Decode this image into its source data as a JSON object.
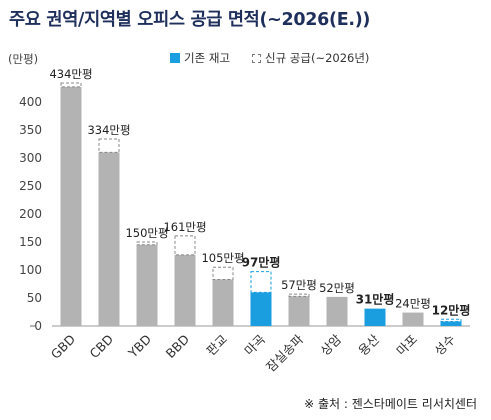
{
  "title": "주요 권역/지역별 오피스 공급 면적(~2026(E.))",
  "source": "※ 출처 : 젠스타메이트 리서치센터",
  "chart_data": {
    "type": "bar",
    "stacked": true,
    "unit_label": "(만평)",
    "yticks": [
      0,
      50,
      100,
      150,
      200,
      250,
      300,
      350,
      400
    ],
    "ylim": [
      0,
      450
    ],
    "categories": [
      "GBD",
      "CBD",
      "YBD",
      "BBD",
      "판교",
      "마곡",
      "잠실송파",
      "상암",
      "용산",
      "마포",
      "성수"
    ],
    "series": [
      {
        "name": "기존 재고",
        "values": [
          427,
          310,
          145,
          127,
          83,
          60,
          53,
          52,
          31,
          24,
          8
        ]
      },
      {
        "name": "신규 공급(~2026년)",
        "values": [
          7,
          24,
          5,
          34,
          22,
          37,
          4,
          0,
          0,
          0,
          4
        ]
      }
    ],
    "total_labels": [
      "434만평",
      "334만평",
      "150만평",
      "161만평",
      "105만평",
      "97만평",
      "57만평",
      "52만평",
      "31만평",
      "24만평",
      "12만평"
    ],
    "highlight_categories": [
      "마곡",
      "용산",
      "성수"
    ],
    "colors": {
      "existing": "#b3b3b3",
      "existing_highlight": "#1a9ee0",
      "new_dash": "#888888",
      "axis": "#999999"
    },
    "legend_position": "top-center",
    "grid": false
  }
}
